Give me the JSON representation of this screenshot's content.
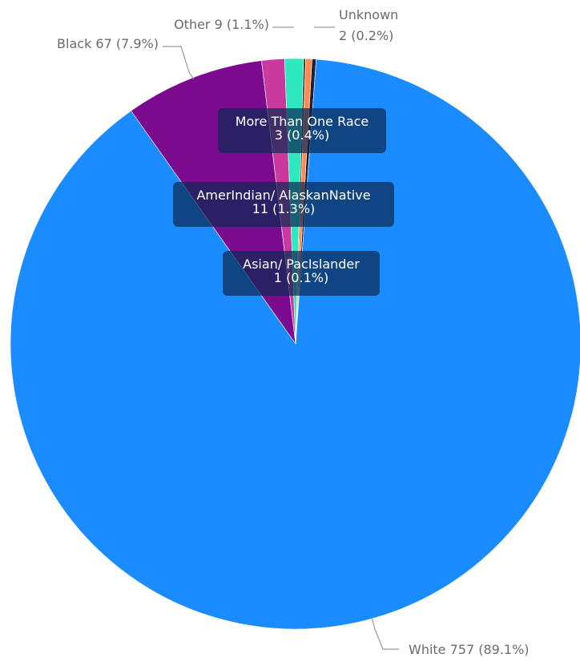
{
  "chart_data": {
    "type": "pie",
    "title": "",
    "slices": [
      {
        "label": "White",
        "value": 757,
        "percent": "89.1%",
        "color": "#1a8cff",
        "text": "White 757 (89.1%)"
      },
      {
        "label": "Black",
        "value": 67,
        "percent": "7.9%",
        "color": "#7b0a8f",
        "text": "Black 67 (7.9%)"
      },
      {
        "label": "AmerIndian/ AlaskanNative",
        "value": 11,
        "percent": "1.3%",
        "color": "#c9399e",
        "text": [
          "AmerIndian/ AlaskanNative",
          "11 (1.3%)"
        ]
      },
      {
        "label": "Other",
        "value": 9,
        "percent": "1.1%",
        "color": "#2ee8c0",
        "text": "Other 9 (1.1%)"
      },
      {
        "label": "Asian/ PacIslander",
        "value": 1,
        "percent": "0.1%",
        "color": "#3b3b3b",
        "text": [
          "Asian/ PacIslander",
          "1 (0.1%)"
        ]
      },
      {
        "label": "More Than One Race",
        "value": 3,
        "percent": "0.4%",
        "color": "#ff8a4c",
        "text": [
          "More Than One Race",
          "3 (0.4%)"
        ]
      },
      {
        "label": "Unknown",
        "value": 2,
        "percent": "0.2%",
        "color": "#1f1f3a",
        "text": [
          "Unknown",
          "2 (0.2%)"
        ]
      }
    ],
    "legend": "none"
  }
}
